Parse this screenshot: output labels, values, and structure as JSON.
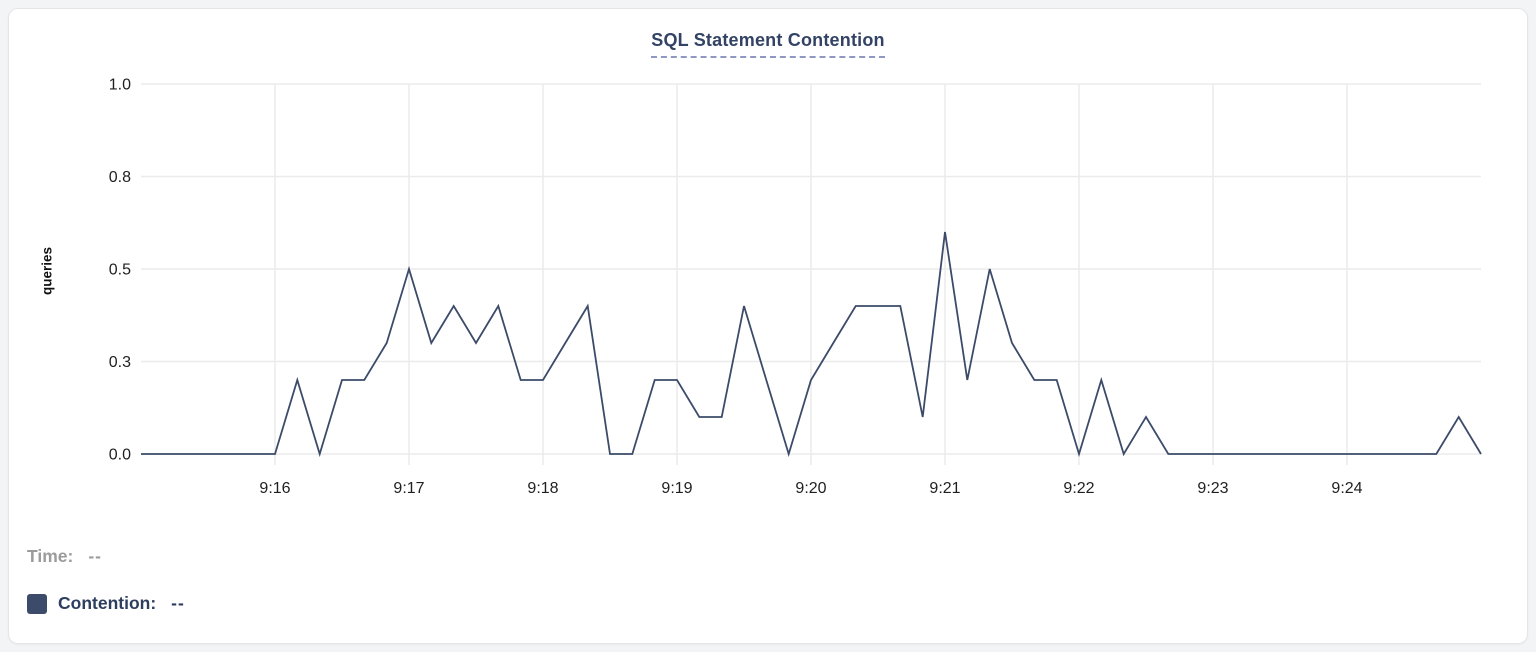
{
  "chart": {
    "title": "SQL Statement Contention",
    "ylabel": "queries"
  },
  "legend": {
    "time_label": "Time:",
    "time_value": "--",
    "contention_label": "Contention:",
    "contention_value": "--"
  },
  "colors": {
    "series_line": "#3c4b69",
    "legend_swatch": "#3c4b69",
    "title_text": "#334365",
    "title_underline": "#8e98c2",
    "grid": "#ebebeb",
    "tick_text": "#1f1f1f",
    "muted_text": "#9b9b9b",
    "contention_text": "#2d3e5e"
  },
  "chart_data": {
    "type": "line",
    "title": "SQL Statement Contention",
    "xlabel": "",
    "ylabel": "queries",
    "ylim": [
      0,
      1
    ],
    "grid": true,
    "legend_position": "bottom-left",
    "y_ticks": [
      {
        "label": "0.0",
        "value": 0
      },
      {
        "label": "0.3",
        "value": 0.25
      },
      {
        "label": "0.5",
        "value": 0.5
      },
      {
        "label": "0.8",
        "value": 0.75
      },
      {
        "label": "1.0",
        "value": 1.0
      }
    ],
    "x_tick_labels": [
      "9:16",
      "9:17",
      "9:18",
      "9:19",
      "9:20",
      "9:21",
      "9:22",
      "9:23",
      "9:24"
    ],
    "x_tick_indices": [
      6,
      12,
      18,
      24,
      30,
      36,
      42,
      48,
      54
    ],
    "series": [
      {
        "name": "Contention",
        "x": [
          "9:15:00",
          "9:15:10",
          "9:15:20",
          "9:15:30",
          "9:15:40",
          "9:15:50",
          "9:16:00",
          "9:16:10",
          "9:16:20",
          "9:16:30",
          "9:16:40",
          "9:16:50",
          "9:17:00",
          "9:17:10",
          "9:17:20",
          "9:17:30",
          "9:17:40",
          "9:17:50",
          "9:18:00",
          "9:18:10",
          "9:18:20",
          "9:18:30",
          "9:18:40",
          "9:18:50",
          "9:19:00",
          "9:19:10",
          "9:19:20",
          "9:19:30",
          "9:19:40",
          "9:19:50",
          "9:20:00",
          "9:20:10",
          "9:20:20",
          "9:20:30",
          "9:20:40",
          "9:20:50",
          "9:21:00",
          "9:21:10",
          "9:21:20",
          "9:21:30",
          "9:21:40",
          "9:21:50",
          "9:22:00",
          "9:22:10",
          "9:22:20",
          "9:22:30",
          "9:22:40",
          "9:22:50",
          "9:23:00",
          "9:23:10",
          "9:23:20",
          "9:23:30",
          "9:23:40",
          "9:23:50",
          "9:24:00",
          "9:24:10",
          "9:24:20",
          "9:24:30",
          "9:24:40",
          "9:24:50",
          "9:25:00"
        ],
        "values": [
          0,
          0,
          0,
          0,
          0,
          0,
          0,
          0.2,
          0,
          0.2,
          0.2,
          0.3,
          0.5,
          0.3,
          0.4,
          0.3,
          0.4,
          0.2,
          0.2,
          0.3,
          0.4,
          0,
          0,
          0.2,
          0.2,
          0.1,
          0.1,
          0.4,
          0.2,
          0,
          0.2,
          0.3,
          0.4,
          0.4,
          0.4,
          0.1,
          0.6,
          0.2,
          0.5,
          0.3,
          0.2,
          0.2,
          0,
          0.2,
          0,
          0.1,
          0,
          0,
          0,
          0,
          0,
          0,
          0,
          0,
          0,
          0,
          0,
          0,
          0,
          0.1,
          0
        ]
      }
    ]
  }
}
